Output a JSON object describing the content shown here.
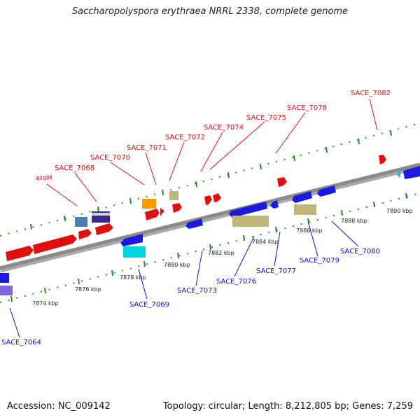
{
  "title": "Saccharopolyspora erythraea NRRL 2338, complete genome",
  "accession": "Accession: NC_009142",
  "topology": "Topology: circular; Length: 8,212,805 bp; Genes: 7,259",
  "tick_labels": [
    "7874 kbp",
    "7876 kbp",
    "7878 kbp",
    "7880 kbp",
    "7882 kbp",
    "7884 kbp",
    "7886 kbp",
    "7888 kbp",
    "7890 kbp"
  ],
  "forward_genes": [
    "aroH",
    "SACE_7068",
    "SACE_7070",
    "SACE_7071",
    "SACE_7072",
    "SACE_7074",
    "SACE_7075",
    "SACE_7078",
    "SACE_7082"
  ],
  "reverse_genes": [
    "SACE_7064",
    "SACE_7069",
    "SACE_7073",
    "SACE_7076",
    "SACE_7077",
    "SACE_7079",
    "SACE_7080"
  ],
  "colors": {
    "forward": "#e01010",
    "reverse": "#1010d0",
    "backbone": "#888888",
    "tick": "#2a8a2a"
  }
}
